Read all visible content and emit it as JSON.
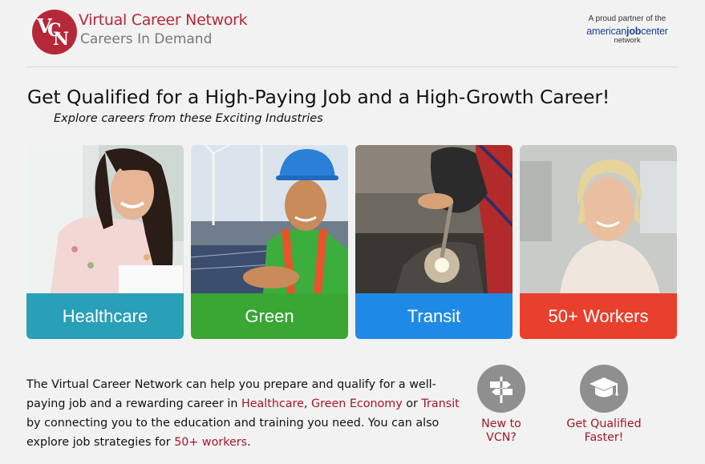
{
  "header": {
    "logo_letters": "VCN",
    "logo_title": "Virtual Career Network",
    "logo_subtitle": "Careers In Demand",
    "partner_line1": "A proud partner of the",
    "partner_brand_a": "american",
    "partner_brand_b": "job",
    "partner_brand_c": "center",
    "partner_line3": "network"
  },
  "main": {
    "headline": "Get Qualified for a High-Paying Job and a High-Growth Career!",
    "subline": "Explore careers from these Exciting Industries"
  },
  "tiles": [
    {
      "label": "Healthcare",
      "color": "#2a9fb8"
    },
    {
      "label": "Green",
      "color": "#3aa634"
    },
    {
      "label": "Transit",
      "color": "#1e8ae6"
    },
    {
      "label": "50+ Workers",
      "color": "#e8402c"
    }
  ],
  "body": {
    "t1": "The Virtual Career Network can help you prepare and qualify for a well-paying job and a rewarding career in ",
    "link_healthcare": "Healthcare",
    "t2": ", ",
    "link_green": "Green Economy",
    "t3": " or ",
    "link_transit": "Transit",
    "t4": " by connecting you to the education and training you need. You can also explore job strategies for ",
    "link_50": "50+ workers",
    "t5": "."
  },
  "actions": [
    {
      "label_line1": "New to",
      "label_line2": "VCN?",
      "icon": "signpost-icon"
    },
    {
      "label_line1": "Get Qualified",
      "label_line2": "Faster!",
      "icon": "graduation-cap-icon"
    }
  ],
  "colors": {
    "brand": "#b5283a",
    "link": "#a3162a",
    "icon_bg": "#8f8f8f"
  }
}
